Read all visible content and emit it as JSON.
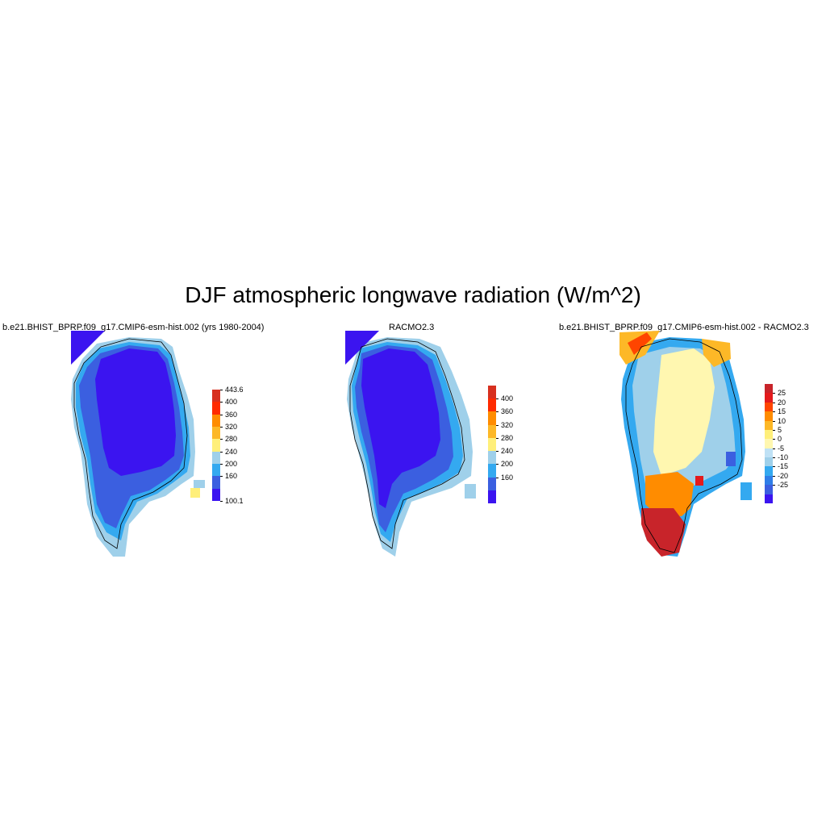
{
  "title": "DJF atmospheric longwave radiation (W/m^2)",
  "panels": [
    {
      "id": "model",
      "title": "b.e21.BHIST_BPRP.f09_g17.CMIP6-esm-hist.002 (yrs 1980-2004)",
      "colorbar": {
        "labels": [
          "443.6",
          "400",
          "360",
          "320",
          "280",
          "240",
          "200",
          "160",
          "100.1"
        ],
        "colors": [
          "#d7301f",
          "#ff2a00",
          "#ff8c00",
          "#fdb827",
          "#ffef7a",
          "#9fd0ea",
          "#34a9f0",
          "#3b5fe0",
          "#3b14f0"
        ]
      }
    },
    {
      "id": "racmo",
      "title": "RACMO2.3",
      "colorbar": {
        "labels": [
          "400",
          "360",
          "320",
          "280",
          "240",
          "200",
          "160"
        ],
        "colors": [
          "#d7301f",
          "#ff2a00",
          "#ff8c00",
          "#fdb827",
          "#ffef7a",
          "#9fd0ea",
          "#34a9f0",
          "#3b5fe0",
          "#3b14f0"
        ]
      }
    },
    {
      "id": "diff",
      "title": "b.e21.BHIST_BPRP.f09_g17.CMIP6-esm-hist.002 - RACMO2.3",
      "colorbar": {
        "labels": [
          "25",
          "20",
          "15",
          "10",
          "5",
          "0",
          "-5",
          "-10",
          "-15",
          "-20",
          "-25"
        ],
        "colors": [
          "#c8242a",
          "#e41a1c",
          "#ff4500",
          "#ff8c00",
          "#fdb827",
          "#ffef7a",
          "#fff7b0",
          "#bfe1f5",
          "#9fd0ea",
          "#34a9f0",
          "#2f7ee8",
          "#3b5fe0",
          "#3b14f0"
        ]
      }
    }
  ]
}
